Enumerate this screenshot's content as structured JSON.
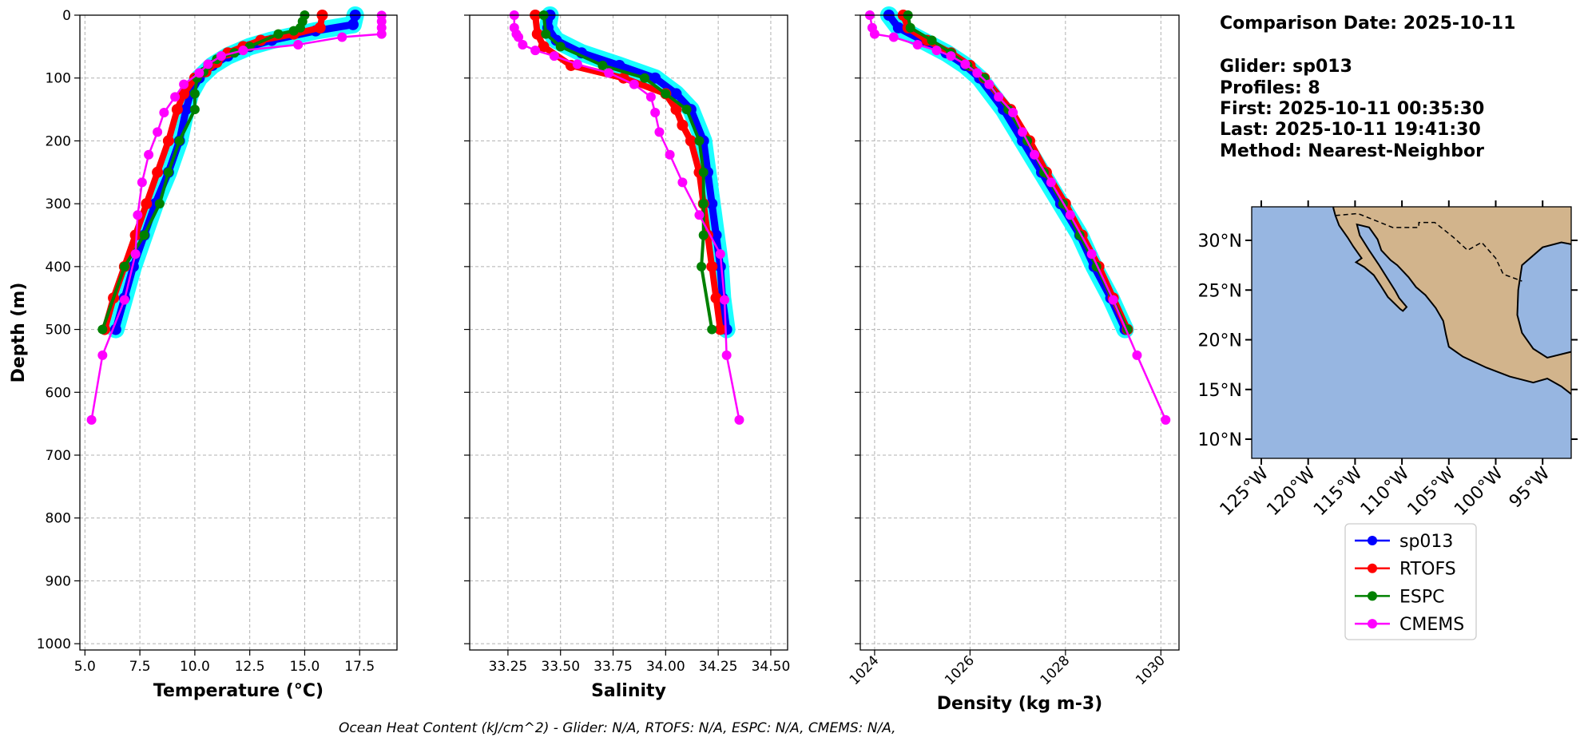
{
  "info": {
    "comparison_date": "Comparison Date: 2025-10-11",
    "glider": "Glider: sp013",
    "profiles": "Profiles: 8",
    "first": "First: 2025-10-11 00:35:30",
    "last": "Last: 2025-10-11 19:41:30",
    "method": "Method: Nearest-Neighbor"
  },
  "footer": "Ocean Heat Content (kJ/cm^2) - Glider: N/A,  RTOFS: N/A,  ESPC: N/A,  CMEMS: N/A,",
  "legend": {
    "placement": "below map",
    "entries": [
      {
        "label": "sp013",
        "color": "#0000ff"
      },
      {
        "label": "RTOFS",
        "color": "#ff0000"
      },
      {
        "label": "ESPC",
        "color": "#008000"
      },
      {
        "label": "CMEMS",
        "color": "#ff00ff"
      }
    ]
  },
  "individual_profiles_color": "#00ffff",
  "chart_data": [
    {
      "type": "line",
      "xlabel": "Temperature (°C)",
      "ylabel": "Depth (m)",
      "xlim": [
        4.77,
        19.2
      ],
      "ylim": [
        1010,
        0
      ],
      "xticks": [
        "5.0",
        "7.5",
        "10.0",
        "12.5",
        "15.0",
        "17.5"
      ],
      "yticks": [
        "0",
        "100",
        "200",
        "300",
        "400",
        "500",
        "600",
        "700",
        "800",
        "900",
        "1000"
      ],
      "grid": true,
      "series": [
        {
          "name": "sp013",
          "color": "#0000ff",
          "points": [
            [
              17.3,
              0
            ],
            [
              17.2,
              15
            ],
            [
              15.5,
              25
            ],
            [
              13.5,
              40
            ],
            [
              12.5,
              50
            ],
            [
              11.5,
              65
            ],
            [
              10.8,
              80
            ],
            [
              10.2,
              100
            ],
            [
              9.8,
              125
            ],
            [
              9.6,
              150
            ],
            [
              9.3,
              200
            ],
            [
              8.8,
              250
            ],
            [
              8.2,
              300
            ],
            [
              7.7,
              350
            ],
            [
              7.2,
              400
            ],
            [
              6.8,
              450
            ],
            [
              6.4,
              500
            ]
          ]
        },
        {
          "name": "RTOFS",
          "color": "#ff0000",
          "points": [
            [
              15.8,
              0
            ],
            [
              15.7,
              20
            ],
            [
              14.5,
              30
            ],
            [
              13,
              40
            ],
            [
              12.2,
              50
            ],
            [
              11.5,
              60
            ],
            [
              11,
              75
            ],
            [
              10.5,
              90
            ],
            [
              10,
              100
            ],
            [
              9.5,
              125
            ],
            [
              9.2,
              150
            ],
            [
              8.8,
              200
            ],
            [
              8.3,
              250
            ],
            [
              7.8,
              300
            ],
            [
              7.3,
              350
            ],
            [
              6.8,
              400
            ],
            [
              6.3,
              450
            ],
            [
              5.9,
              500
            ]
          ]
        },
        {
          "name": "ESPC",
          "color": "#008000",
          "points": [
            [
              15.0,
              0
            ],
            [
              14.9,
              10
            ],
            [
              14.8,
              20
            ],
            [
              14.5,
              25
            ],
            [
              13.8,
              30
            ],
            [
              12.5,
              50
            ],
            [
              11.8,
              60
            ],
            [
              11,
              70
            ],
            [
              10.6,
              80
            ],
            [
              10.4,
              90
            ],
            [
              10.1,
              100
            ],
            [
              10.0,
              125
            ],
            [
              10.0,
              150
            ],
            [
              9.3,
              200
            ],
            [
              8.8,
              250
            ],
            [
              8.4,
              300
            ],
            [
              7.7,
              350
            ],
            [
              6.8,
              400
            ],
            [
              5.8,
              500
            ]
          ]
        },
        {
          "name": "CMEMS",
          "color": "#ff00ff",
          "points": [
            [
              18.5,
              0.5
            ],
            [
              18.5,
              10
            ],
            [
              18.5,
              20
            ],
            [
              18.5,
              30
            ],
            [
              16.7,
              35
            ],
            [
              14.7,
              47
            ],
            [
              12.2,
              56
            ],
            [
              11.2,
              65
            ],
            [
              10.6,
              78
            ],
            [
              10.2,
              92
            ],
            [
              9.5,
              110
            ],
            [
              9.1,
              130
            ],
            [
              8.6,
              155
            ],
            [
              8.3,
              186
            ],
            [
              7.9,
              222
            ],
            [
              7.6,
              266
            ],
            [
              7.4,
              318
            ],
            [
              7.3,
              380
            ],
            [
              6.8,
              453
            ],
            [
              5.8,
              541
            ],
            [
              5.3,
              644
            ]
          ]
        }
      ]
    },
    {
      "type": "line",
      "xlabel": "Salinity",
      "ylabel": "",
      "xlim": [
        33.068,
        34.58
      ],
      "ylim": [
        1010,
        0
      ],
      "xticks": [
        "33.25",
        "33.50",
        "33.75",
        "34.00",
        "34.25",
        "34.50"
      ],
      "grid": true,
      "series": [
        {
          "name": "sp013",
          "color": "#0000ff",
          "points": [
            [
              33.45,
              0
            ],
            [
              33.44,
              20
            ],
            [
              33.48,
              40
            ],
            [
              33.6,
              60
            ],
            [
              33.78,
              80
            ],
            [
              33.95,
              100
            ],
            [
              34.05,
              125
            ],
            [
              34.12,
              150
            ],
            [
              34.18,
              200
            ],
            [
              34.2,
              250
            ],
            [
              34.22,
              300
            ],
            [
              34.24,
              350
            ],
            [
              34.26,
              400
            ],
            [
              34.27,
              450
            ],
            [
              34.29,
              500
            ]
          ]
        },
        {
          "name": "RTOFS",
          "color": "#ff0000",
          "points": [
            [
              33.38,
              0
            ],
            [
              33.39,
              30
            ],
            [
              33.42,
              50
            ],
            [
              33.55,
              80
            ],
            [
              33.8,
              100
            ],
            [
              34.0,
              125
            ],
            [
              34.05,
              150
            ],
            [
              34.08,
              175
            ],
            [
              34.12,
              200
            ],
            [
              34.16,
              250
            ],
            [
              34.18,
              300
            ],
            [
              34.2,
              350
            ],
            [
              34.22,
              400
            ],
            [
              34.24,
              450
            ],
            [
              34.26,
              500
            ]
          ]
        },
        {
          "name": "ESPC",
          "color": "#008000",
          "points": [
            [
              33.42,
              0
            ],
            [
              33.43,
              30
            ],
            [
              33.5,
              50
            ],
            [
              33.7,
              80
            ],
            [
              33.9,
              100
            ],
            [
              34.0,
              125
            ],
            [
              34.1,
              150
            ],
            [
              34.16,
              200
            ],
            [
              34.18,
              250
            ],
            [
              34.18,
              300
            ],
            [
              34.18,
              350
            ],
            [
              34.17,
              400
            ],
            [
              34.22,
              500
            ]
          ]
        },
        {
          "name": "CMEMS",
          "color": "#ff00ff",
          "points": [
            [
              33.28,
              0
            ],
            [
              33.28,
              20
            ],
            [
              33.29,
              30
            ],
            [
              33.3,
              35
            ],
            [
              33.32,
              47
            ],
            [
              33.38,
              56
            ],
            [
              33.47,
              65
            ],
            [
              33.58,
              78
            ],
            [
              33.73,
              92
            ],
            [
              33.85,
              110
            ],
            [
              33.93,
              130
            ],
            [
              33.95,
              155
            ],
            [
              33.97,
              186
            ],
            [
              34.02,
              222
            ],
            [
              34.08,
              266
            ],
            [
              34.16,
              318
            ],
            [
              34.26,
              380
            ],
            [
              34.28,
              453
            ],
            [
              34.29,
              541
            ],
            [
              34.35,
              644
            ]
          ]
        }
      ]
    },
    {
      "type": "line",
      "xlabel": "Density (kg m-3)",
      "ylabel": "",
      "xlim": [
        1023.7,
        1030.38
      ],
      "ylim": [
        1010,
        0
      ],
      "xticks": [
        "1024",
        "1026",
        "1028",
        "1030"
      ],
      "grid": true,
      "series": [
        {
          "name": "sp013",
          "color": "#0000ff",
          "points": [
            [
              1024.3,
              0
            ],
            [
              1024.5,
              20
            ],
            [
              1025.0,
              40
            ],
            [
              1025.5,
              60
            ],
            [
              1025.9,
              80
            ],
            [
              1026.2,
              100
            ],
            [
              1026.7,
              150
            ],
            [
              1027.1,
              200
            ],
            [
              1027.5,
              250
            ],
            [
              1027.9,
              300
            ],
            [
              1028.3,
              350
            ],
            [
              1028.6,
              400
            ],
            [
              1028.95,
              450
            ],
            [
              1029.25,
              500
            ]
          ]
        },
        {
          "name": "RTOFS",
          "color": "#ff0000",
          "points": [
            [
              1024.6,
              0
            ],
            [
              1024.7,
              20
            ],
            [
              1025.1,
              40
            ],
            [
              1025.6,
              60
            ],
            [
              1026.0,
              80
            ],
            [
              1026.3,
              100
            ],
            [
              1026.85,
              150
            ],
            [
              1027.25,
              200
            ],
            [
              1027.6,
              250
            ],
            [
              1028.0,
              300
            ],
            [
              1028.35,
              350
            ],
            [
              1028.7,
              400
            ],
            [
              1029.0,
              450
            ],
            [
              1029.3,
              500
            ]
          ]
        },
        {
          "name": "ESPC",
          "color": "#008000",
          "points": [
            [
              1024.7,
              0
            ],
            [
              1024.75,
              20
            ],
            [
              1025.2,
              40
            ],
            [
              1025.6,
              60
            ],
            [
              1025.95,
              80
            ],
            [
              1026.3,
              100
            ],
            [
              1026.8,
              150
            ],
            [
              1027.2,
              200
            ],
            [
              1027.55,
              250
            ],
            [
              1027.95,
              300
            ],
            [
              1028.3,
              350
            ],
            [
              1028.65,
              400
            ],
            [
              1029.3,
              500
            ]
          ]
        },
        {
          "name": "CMEMS",
          "color": "#ff00ff",
          "points": [
            [
              1023.9,
              0
            ],
            [
              1023.95,
              20
            ],
            [
              1024.0,
              30
            ],
            [
              1024.4,
              35
            ],
            [
              1024.9,
              47
            ],
            [
              1025.3,
              56
            ],
            [
              1025.6,
              65
            ],
            [
              1025.9,
              78
            ],
            [
              1026.15,
              92
            ],
            [
              1026.4,
              110
            ],
            [
              1026.6,
              130
            ],
            [
              1026.9,
              155
            ],
            [
              1027.1,
              186
            ],
            [
              1027.35,
              222
            ],
            [
              1027.7,
              266
            ],
            [
              1028.1,
              318
            ],
            [
              1028.55,
              380
            ],
            [
              1029.0,
              453
            ],
            [
              1029.5,
              541
            ],
            [
              1030.1,
              644
            ]
          ]
        }
      ]
    }
  ],
  "map": {
    "type": "map",
    "lon_range": [
      -126,
      -91.9
    ],
    "lat_range": [
      8,
      33.2
    ],
    "lat_ticks": [
      "10°N",
      "15°N",
      "20°N",
      "25°N",
      "30°N"
    ],
    "lon_ticks": [
      "125°W",
      "120°W",
      "115°W",
      "110°W",
      "105°W",
      "100°W",
      "95°W"
    ],
    "ocean_color": "#97b6e1",
    "land_color": "#d2b48c"
  }
}
